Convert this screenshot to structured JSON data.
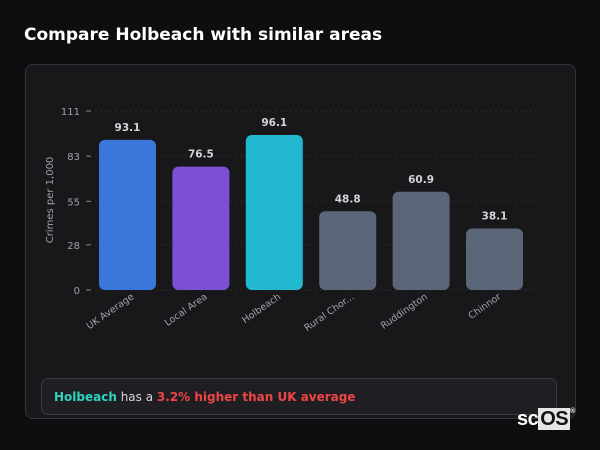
{
  "title": "Compare Holbeach with similar areas",
  "chart_data": {
    "type": "bar",
    "categories": [
      "UK Average",
      "Local Area",
      "Holbeach",
      "Rural Chor...",
      "Ruddington",
      "Chinnor"
    ],
    "values": [
      93.1,
      76.5,
      96.1,
      48.8,
      60.9,
      38.1
    ],
    "value_labels": [
      "93.1",
      "76.5",
      "96.1",
      "48.8",
      "60.9",
      "38.1"
    ],
    "colors": [
      "#3b76db",
      "#7b50d4",
      "#22b8cf",
      "#5b6678",
      "#5b6678",
      "#5b6678"
    ],
    "ylabel": "Crimes per 1,000",
    "ylim": [
      0,
      111
    ],
    "yticks": [
      0,
      28,
      55,
      83,
      111
    ],
    "grid": true
  },
  "summary": {
    "area": "Holbeach",
    "middle": " has a ",
    "comparison": "3.2% higher than UK average"
  },
  "logo": {
    "text_a": "sc",
    "text_b": "OS",
    "mark": "®"
  }
}
